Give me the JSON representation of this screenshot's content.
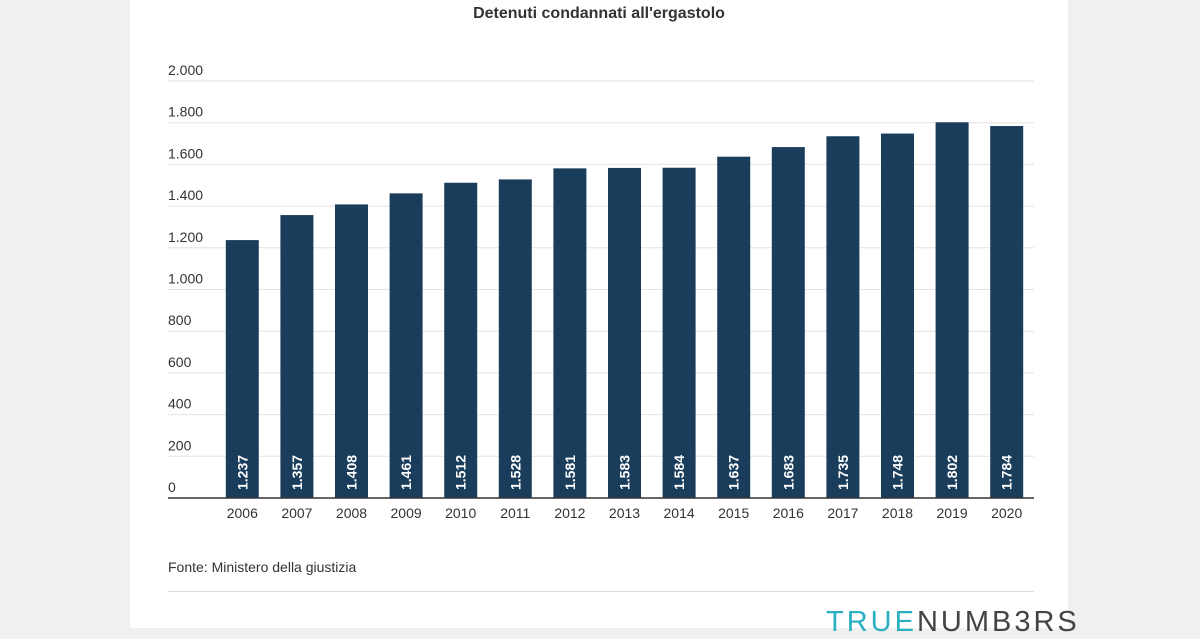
{
  "chart_data": {
    "type": "bar",
    "title": "Detenuti condannati all'ergastolo",
    "categories": [
      "2006",
      "2007",
      "2008",
      "2009",
      "2010",
      "2011",
      "2012",
      "2013",
      "2014",
      "2015",
      "2016",
      "2017",
      "2018",
      "2019",
      "2020"
    ],
    "values": [
      1237,
      1357,
      1408,
      1461,
      1512,
      1528,
      1581,
      1583,
      1584,
      1637,
      1683,
      1735,
      1748,
      1802,
      1784
    ],
    "value_labels": [
      "1.237",
      "1.357",
      "1.408",
      "1.461",
      "1.512",
      "1.528",
      "1.581",
      "1.583",
      "1.584",
      "1.637",
      "1.683",
      "1.735",
      "1.748",
      "1.802",
      "1.784"
    ],
    "y_ticks": [
      0,
      200,
      400,
      600,
      800,
      1000,
      1200,
      1400,
      1600,
      1800,
      2000
    ],
    "y_tick_labels": [
      "0",
      "200",
      "400",
      "600",
      "800",
      "1.000",
      "1.200",
      "1.400",
      "1.600",
      "1.800",
      "2.000"
    ],
    "ylim": [
      0,
      2000
    ],
    "grid": true,
    "bar_color": "#1b3d5c",
    "xlabel": "",
    "ylabel": ""
  },
  "source": "Fonte: Ministero della giustizia",
  "brand": {
    "part1": "TRUE",
    "part2": "NUMB3RS"
  }
}
